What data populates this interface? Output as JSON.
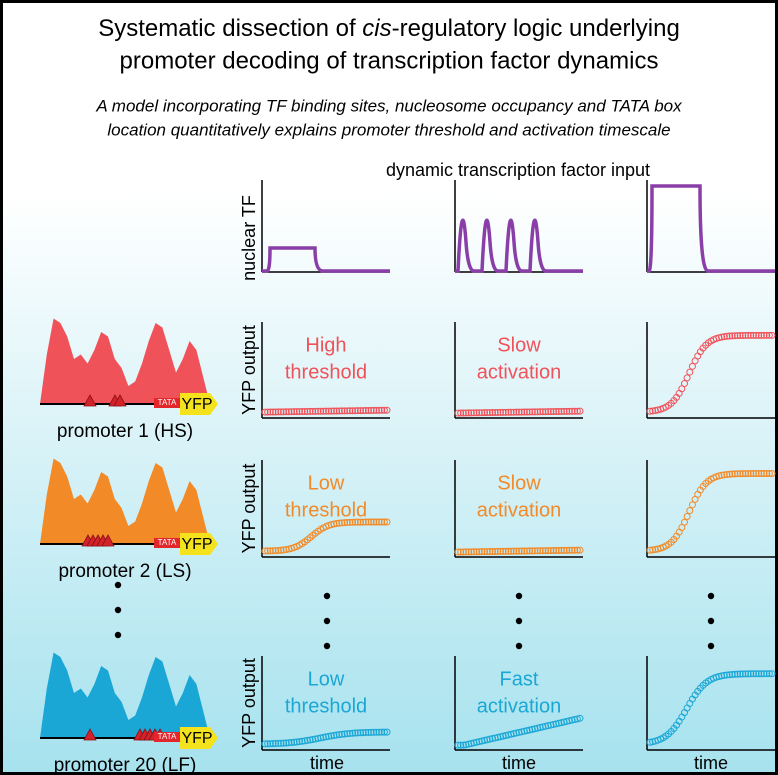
{
  "header": {
    "title": [
      "Systematic dissection of ",
      "cis",
      "-regulatory logic underlying",
      "promoter decoding of transcription factor dynamics"
    ],
    "subtitle": [
      "A model incorporating TF binding sites, nucleosome occupancy and TATA box",
      "location quantitatively explains promoter threshold and activation timescale"
    ]
  },
  "input": {
    "label": "dynamic transcription factor input",
    "axis_label": "nuclear TF",
    "color": "#8a3fa8"
  },
  "x_label": "time",
  "rows": [
    {
      "promoter": "promoter 1 (HS)",
      "color": "#f0525a",
      "tata": "TATA",
      "reporter": "YFP",
      "axis_label": "YFP output",
      "panels": [
        [
          "High",
          "threshold"
        ],
        [
          "Slow",
          "activation"
        ]
      ]
    },
    {
      "promoter": "promoter 2 (LS)",
      "color": "#f28a28",
      "tata": "TATA",
      "reporter": "YFP",
      "axis_label": "YFP output",
      "panels": [
        [
          "Low",
          "threshold"
        ],
        [
          "Slow",
          "activation"
        ]
      ]
    },
    {
      "promoter": "promoter 20 (LF)",
      "color": "#1ba7d6",
      "tata": "TATA",
      "reporter": "YFP",
      "axis_label": "YFP output",
      "panels": [
        [
          "Low",
          "threshold"
        ],
        [
          "Fast",
          "activation"
        ]
      ]
    }
  ]
}
